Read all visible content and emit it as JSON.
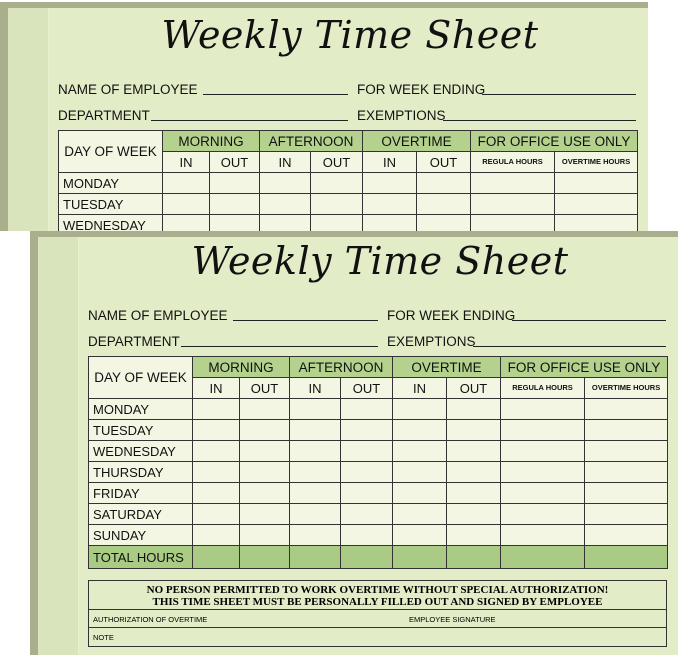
{
  "sheet": {
    "title": "Weekly Time Sheet",
    "name_label": "NAME OF EMPLOYEE",
    "week_ending_label": "FOR WEEK ENDING",
    "department_label": "DEPARTMENT",
    "exemptions_label": "EXEMPTIONS",
    "day_header": "DAY OF WEEK",
    "groups": [
      "MORNING",
      "AFTERNOON",
      "OVERTIME",
      "FOR OFFICE USE ONLY"
    ],
    "in_label": "IN",
    "out_label": "OUT",
    "regular_hours_label": "REGULA HOURS",
    "overtime_hours_label": "OVERTIME HOURS",
    "days": [
      "MONDAY",
      "TUESDAY",
      "WEDNESDAY",
      "THURSDAY",
      "FRIDAY",
      "SATURDAY",
      "SUNDAY"
    ],
    "total_label": "TOTAL HOURS",
    "notice_line1": "NO PERSON PERMITTED TO WORK OVERTIME WITHOUT SPECIAL AUTHORIZATION!",
    "notice_line2": "THIS TIME SHEET MUST BE PERSONALLY FILLED OUT AND SIGNED BY EMPLOYEE",
    "authorization_label": "AUTHORIZATION OF OVERTIME",
    "signature_label": "EMPLOYEE SIGNATURE",
    "note_label": "NOTE"
  },
  "colors": {
    "paper": "#e2ecc6",
    "header_green": "#b4d28d",
    "total_green": "#a9cb84",
    "cell": "#f3f6e3",
    "pad_edge": "#a9ae8d"
  }
}
